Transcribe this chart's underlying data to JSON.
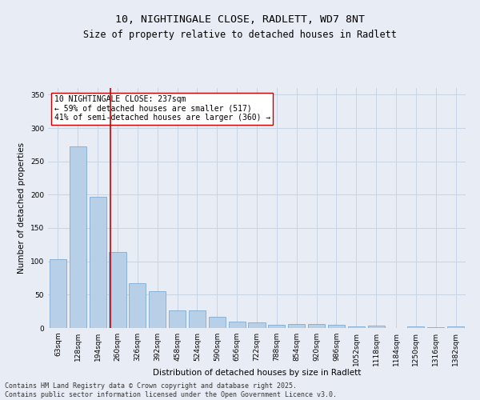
{
  "title1": "10, NIGHTINGALE CLOSE, RADLETT, WD7 8NT",
  "title2": "Size of property relative to detached houses in Radlett",
  "xlabel": "Distribution of detached houses by size in Radlett",
  "ylabel": "Number of detached properties",
  "categories": [
    "63sqm",
    "128sqm",
    "194sqm",
    "260sqm",
    "326sqm",
    "392sqm",
    "458sqm",
    "524sqm",
    "590sqm",
    "656sqm",
    "722sqm",
    "788sqm",
    "854sqm",
    "920sqm",
    "986sqm",
    "1052sqm",
    "1118sqm",
    "1184sqm",
    "1250sqm",
    "1316sqm",
    "1382sqm"
  ],
  "values": [
    103,
    272,
    197,
    114,
    67,
    55,
    27,
    27,
    17,
    10,
    9,
    5,
    6,
    6,
    5,
    3,
    4,
    0,
    2,
    1,
    2
  ],
  "bar_color": "#b8cfe8",
  "bar_edge_color": "#6fa0cc",
  "grid_color": "#c8d4e3",
  "bg_color": "#e8edf5",
  "vline_x_index": 2.65,
  "vline_color": "#cc0000",
  "annotation_text": "10 NIGHTINGALE CLOSE: 237sqm\n← 59% of detached houses are smaller (517)\n41% of semi-detached houses are larger (360) →",
  "annotation_box_color": "#ffffff",
  "annotation_box_edge": "#cc0000",
  "ylim": [
    0,
    360
  ],
  "yticks": [
    0,
    50,
    100,
    150,
    200,
    250,
    300,
    350
  ],
  "footer": "Contains HM Land Registry data © Crown copyright and database right 2025.\nContains public sector information licensed under the Open Government Licence v3.0.",
  "title_fontsize": 9.5,
  "subtitle_fontsize": 8.5,
  "axis_fontsize": 7.5,
  "tick_fontsize": 6.5,
  "footer_fontsize": 6.0,
  "annot_fontsize": 7.0
}
